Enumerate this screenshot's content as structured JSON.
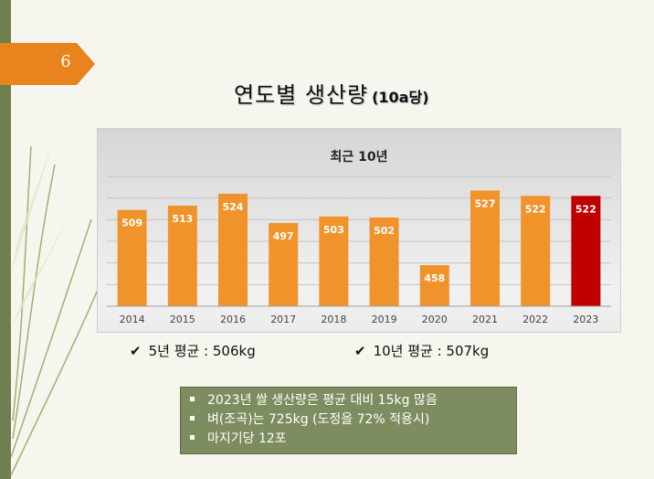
{
  "slide_number": "6",
  "title": {
    "main": "연도별 생산량",
    "sub": "(10a당)"
  },
  "averages": [
    {
      "label": "5년 평균 : 506kg"
    },
    {
      "label": "10년 평균 : 507kg"
    }
  ],
  "notes": [
    "2023년 쌀 생산량은 평균 대비 15kg 많음",
    "벼(조곡)는 725kg (도정을 72% 적용시)",
    "마지기당 12포"
  ],
  "colors": {
    "bar": "#f0932b",
    "highlight_bar": "#c00000",
    "accent_strip": "#6f7f50",
    "badge": "#e8831e",
    "note_box": "#7d8d60"
  },
  "chart_data": {
    "type": "bar",
    "title": "최근 10년",
    "categories": [
      "2014",
      "2015",
      "2016",
      "2017",
      "2018",
      "2019",
      "2020",
      "2021",
      "2022",
      "2023"
    ],
    "values": [
      509,
      513,
      524,
      497,
      503,
      502,
      458,
      527,
      522,
      522
    ],
    "highlight": "2023",
    "ylim": [
      420,
      540
    ],
    "grid": true,
    "xlabel": "",
    "ylabel": ""
  }
}
